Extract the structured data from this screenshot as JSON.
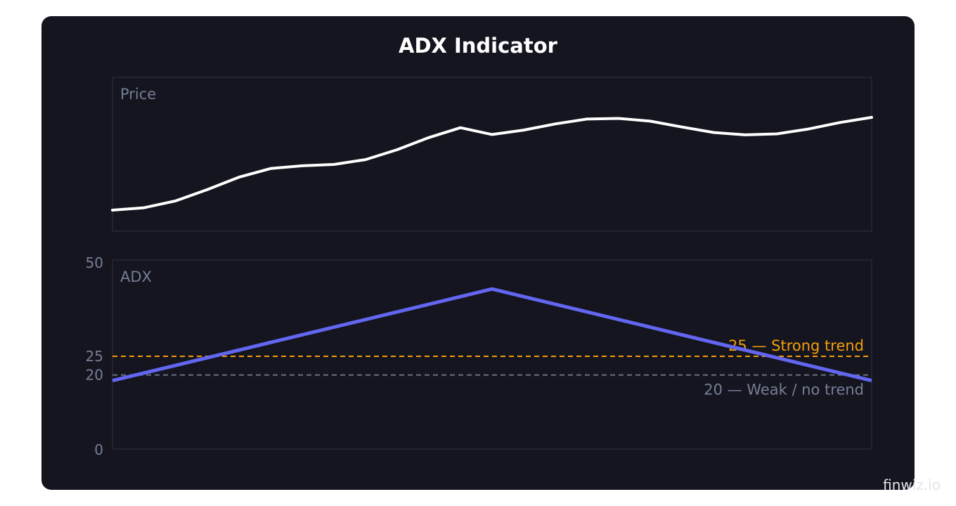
{
  "colors": {
    "card_bg": "#14151f",
    "panel_border": "#22232f",
    "price_line": "#ffffff",
    "adx_line": "#6366f1",
    "strong_ref": "#f59e0b",
    "weak_ref": "#6b7280",
    "muted_text": "#767e96",
    "watermark": "#e3e5ea"
  },
  "watermark": "finwiz.io",
  "chart_data": [
    {
      "type": "line",
      "title": "ADX Indicator",
      "panel_label": "Price",
      "x": [
        0,
        1,
        2,
        3,
        4,
        5,
        6,
        7,
        8,
        9,
        10,
        11,
        12,
        13,
        14,
        15,
        16,
        17,
        18,
        19,
        20,
        21,
        22,
        23,
        24
      ],
      "series": [
        {
          "values": [
            100.0,
            100.7,
            102.7,
            106.0,
            109.6,
            112.1,
            112.9,
            113.3,
            114.7,
            117.6,
            121.1,
            124.0,
            122.0,
            123.3,
            125.1,
            126.5,
            126.7,
            125.9,
            124.2,
            122.6,
            121.9,
            122.2,
            123.6,
            125.5,
            127.0
          ]
        }
      ],
      "grid": false
    },
    {
      "type": "line",
      "panel_label": "ADX",
      "x": [
        0,
        12,
        24
      ],
      "ylim": [
        0,
        50
      ],
      "yticks": [
        0,
        20,
        25,
        50
      ],
      "series": [
        {
          "values": [
            18.5,
            43,
            18.5
          ]
        }
      ],
      "reference_lines": [
        {
          "value": 25,
          "label": "25 — Strong trend",
          "color": "#f59e0b",
          "style": "dashed"
        },
        {
          "value": 20,
          "label": "20 — Weak / no trend",
          "color": "#6b7280",
          "style": "dashed"
        }
      ],
      "grid": false
    }
  ]
}
